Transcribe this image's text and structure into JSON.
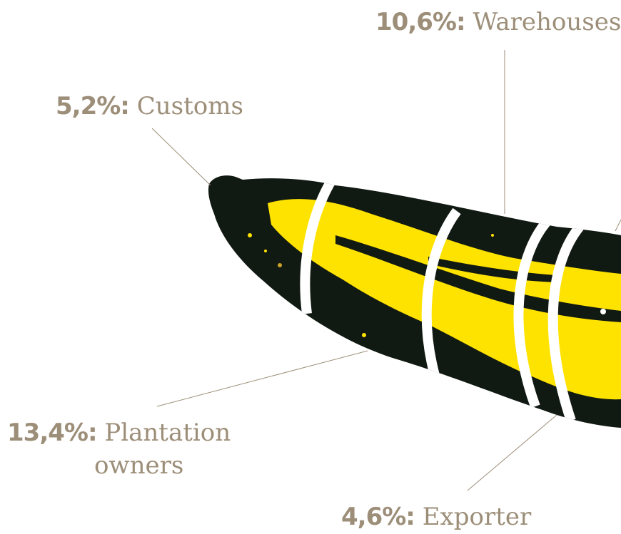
{
  "colors": {
    "label_text": "#9c8e78",
    "leader_line": "#9c8e78",
    "banana_dark": "#111a12",
    "banana_yellow": "#ffe300",
    "ring_gap": "#ffffff"
  },
  "segments": [
    {
      "id": "warehouses",
      "percent": "10,6%:",
      "label": "Warehouses"
    },
    {
      "id": "customs",
      "percent": "5,2%:",
      "label": "Customs"
    },
    {
      "id": "plantation",
      "percent": "13,4%:",
      "label_line1": "Plantation",
      "label_line2": "owners"
    },
    {
      "id": "exporter",
      "percent": "4,6%:",
      "label": "Exporter"
    }
  ]
}
